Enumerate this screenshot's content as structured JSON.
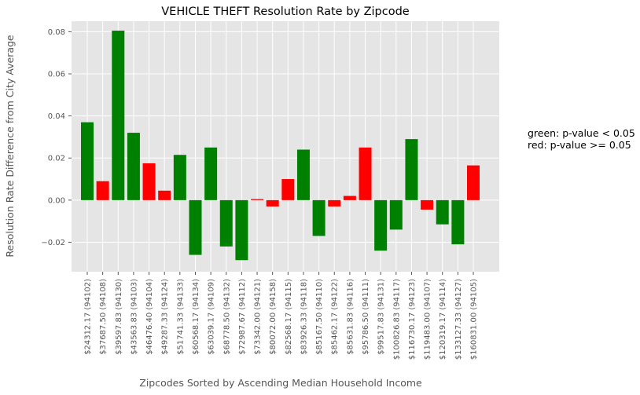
{
  "chart_data": {
    "type": "bar",
    "title": "VEHICLE THEFT Resolution Rate by Zipcode",
    "xlabel": "Zipcodes Sorted by Ascending Median Household Income",
    "ylabel": "Resolution Rate Difference from City Average",
    "ylim": [
      -0.034,
      0.085
    ],
    "yticks": [
      -0.02,
      0.0,
      0.02,
      0.04,
      0.06,
      0.08
    ],
    "ytick_labels": [
      "−0.02",
      "0.00",
      "0.02",
      "0.04",
      "0.06",
      "0.08"
    ],
    "grid": true,
    "categories": [
      "$24312.17 (94102)",
      "$37687.50 (94108)",
      "$39597.83 (94130)",
      "$43563.83 (94103)",
      "$46476.40 (94104)",
      "$49287.33 (94124)",
      "$51741.33 (94133)",
      "$60568.17 (94134)",
      "$63039.17 (94109)",
      "$68778.50 (94132)",
      "$72987.67 (94112)",
      "$73342.00 (94121)",
      "$80072.00 (94158)",
      "$82568.17 (94115)",
      "$83926.33 (94118)",
      "$85167.50 (94110)",
      "$85462.17 (94122)",
      "$85631.83 (94116)",
      "$95786.50 (94111)",
      "$99517.83 (94131)",
      "$100826.83 (94117)",
      "$116730.17 (94123)",
      "$119483.00 (94107)",
      "$120319.17 (94114)",
      "$133127.33 (94127)",
      "$160831.00 (94105)"
    ],
    "values": [
      0.037,
      0.009,
      0.0805,
      0.032,
      0.0175,
      0.0045,
      0.0215,
      -0.026,
      0.025,
      -0.022,
      -0.0285,
      0.0005,
      -0.003,
      0.01,
      0.024,
      -0.017,
      -0.003,
      0.002,
      0.025,
      -0.024,
      -0.014,
      0.029,
      -0.0045,
      -0.0115,
      -0.021,
      0.0165
    ],
    "significant": [
      true,
      false,
      true,
      true,
      false,
      false,
      true,
      true,
      true,
      true,
      true,
      false,
      false,
      false,
      true,
      true,
      false,
      false,
      false,
      true,
      true,
      true,
      false,
      true,
      true,
      false
    ],
    "colors": {
      "significant": "#008000",
      "not_significant": "#ff0000",
      "plot_bg": "#e5e5e5",
      "grid": "#ffffff"
    },
    "annotations": [
      "green: p-value < 0.05",
      "red: p-value >= 0.05"
    ]
  }
}
